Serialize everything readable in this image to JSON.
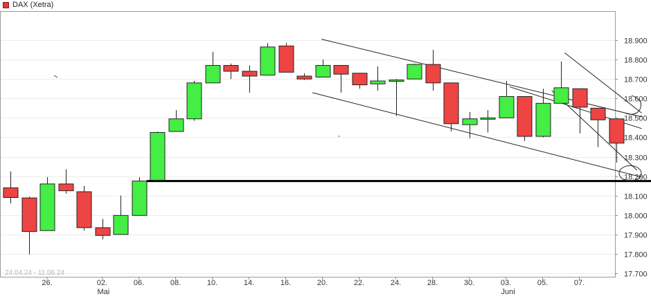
{
  "chart_data": {
    "type": "candlestick",
    "series": [
      {
        "name": "DAX (Xetra)",
        "up_color": "#44ee44",
        "down_color": "#ee4444"
      }
    ],
    "date_range": "24.04.24 - 11.06.24",
    "ylim": [
      17700,
      18950
    ],
    "yticks": [
      "17.700",
      "17.800",
      "17.900",
      "18.000",
      "18.100",
      "18.200",
      "18.300",
      "18.400",
      "18.500",
      "18.600",
      "18.700",
      "18.800",
      "18.900"
    ],
    "xticks": [
      {
        "label": "26.",
        "sub": ""
      },
      {
        "label": "02.",
        "sub": "Mai"
      },
      {
        "label": "06.",
        "sub": ""
      },
      {
        "label": "08.",
        "sub": ""
      },
      {
        "label": "10.",
        "sub": ""
      },
      {
        "label": "14.",
        "sub": ""
      },
      {
        "label": "16.",
        "sub": ""
      },
      {
        "label": "20.",
        "sub": ""
      },
      {
        "label": "22.",
        "sub": ""
      },
      {
        "label": "24.",
        "sub": ""
      },
      {
        "label": "28.",
        "sub": ""
      },
      {
        "label": "30.",
        "sub": ""
      },
      {
        "label": "03.",
        "sub": "Juni"
      },
      {
        "label": "05.",
        "sub": ""
      },
      {
        "label": "07.",
        "sub": ""
      }
    ],
    "candles": [
      {
        "o": 18140,
        "h": 18225,
        "l": 18060,
        "c": 18090
      },
      {
        "o": 18088,
        "h": 18095,
        "l": 17797,
        "c": 17915
      },
      {
        "o": 17920,
        "h": 18195,
        "l": 17920,
        "c": 18160
      },
      {
        "o": 18160,
        "h": 18235,
        "l": 18110,
        "c": 18125
      },
      {
        "o": 18120,
        "h": 18150,
        "l": 17920,
        "c": 17935
      },
      {
        "o": 17935,
        "h": 17980,
        "l": 17875,
        "c": 17895
      },
      {
        "o": 17900,
        "h": 18100,
        "l": 17900,
        "c": 17998
      },
      {
        "o": 17998,
        "h": 18195,
        "l": 17998,
        "c": 18175
      },
      {
        "o": 18175,
        "h": 18430,
        "l": 18170,
        "c": 18425
      },
      {
        "o": 18430,
        "h": 18540,
        "l": 18430,
        "c": 18495
      },
      {
        "o": 18495,
        "h": 18690,
        "l": 18485,
        "c": 18680
      },
      {
        "o": 18680,
        "h": 18840,
        "l": 18680,
        "c": 18770
      },
      {
        "o": 18770,
        "h": 18780,
        "l": 18700,
        "c": 18740
      },
      {
        "o": 18740,
        "h": 18770,
        "l": 18630,
        "c": 18715
      },
      {
        "o": 18720,
        "h": 18885,
        "l": 18720,
        "c": 18865
      },
      {
        "o": 18870,
        "h": 18885,
        "l": 18740,
        "c": 18735
      },
      {
        "o": 18715,
        "h": 18730,
        "l": 18695,
        "c": 18700
      },
      {
        "o": 18710,
        "h": 18800,
        "l": 18710,
        "c": 18770
      },
      {
        "o": 18770,
        "h": 18770,
        "l": 18630,
        "c": 18725
      },
      {
        "o": 18730,
        "h": 18730,
        "l": 18650,
        "c": 18670
      },
      {
        "o": 18675,
        "h": 18765,
        "l": 18640,
        "c": 18690
      },
      {
        "o": 18690,
        "h": 18700,
        "l": 18510,
        "c": 18695
      },
      {
        "o": 18700,
        "h": 18780,
        "l": 18700,
        "c": 18775
      },
      {
        "o": 18775,
        "h": 18850,
        "l": 18640,
        "c": 18680
      },
      {
        "o": 18680,
        "h": 18680,
        "l": 18430,
        "c": 18470
      },
      {
        "o": 18465,
        "h": 18530,
        "l": 18395,
        "c": 18495
      },
      {
        "o": 18495,
        "h": 18540,
        "l": 18425,
        "c": 18500
      },
      {
        "o": 18500,
        "h": 18690,
        "l": 18500,
        "c": 18610
      },
      {
        "o": 18610,
        "h": 18610,
        "l": 18380,
        "c": 18405
      },
      {
        "o": 18405,
        "h": 18650,
        "l": 18400,
        "c": 18575
      },
      {
        "o": 18575,
        "h": 18790,
        "l": 18575,
        "c": 18655
      },
      {
        "o": 18650,
        "h": 18650,
        "l": 18420,
        "c": 18555
      },
      {
        "o": 18550,
        "h": 18550,
        "l": 18350,
        "c": 18490
      },
      {
        "o": 18495,
        "h": 18495,
        "l": 18270,
        "c": 18370
      }
    ],
    "support_line": {
      "y": 18175,
      "from_candle": 7.5
    },
    "trend_lines": [
      {
        "from": [
          16.95,
          18905
        ],
        "to": [
          34.4,
          18505
        ]
      },
      {
        "from": [
          16.45,
          18630
        ],
        "to": [
          34.4,
          18195
        ]
      },
      {
        "from": [
          27.2,
          18660
        ],
        "to": [
          34.4,
          18445
        ]
      },
      {
        "from": [
          29.5,
          18640
        ],
        "to": [
          34.15,
          18230
        ]
      },
      {
        "from": [
          30.2,
          18835
        ],
        "to": [
          34.4,
          18525
        ]
      }
    ],
    "grid": "horizontal",
    "legend_position": "top-left"
  }
}
